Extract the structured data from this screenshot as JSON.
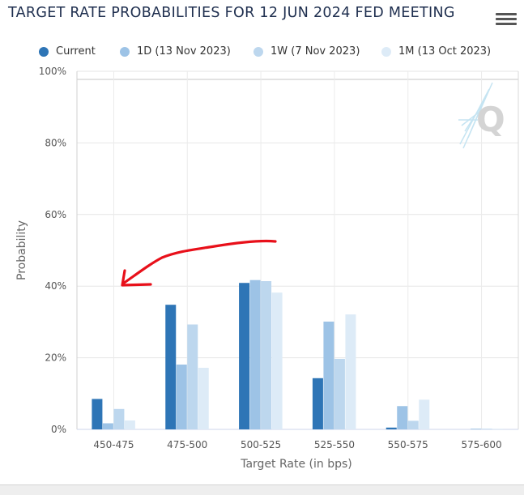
{
  "title": "TARGET RATE PROBABILITIES FOR 12 JUN 2024 FED MEETING",
  "menu_icon": "hamburger-menu-icon",
  "watermark_icon": "quikstrike-q-logo-icon",
  "annotation": {
    "type": "hand-drawn red arrow",
    "color": "#e8101a",
    "points_to": "40%"
  },
  "legend": [
    {
      "label": "Current",
      "color": "#2e75b6"
    },
    {
      "label": "1D (13 Nov 2023)",
      "color": "#9dc3e6"
    },
    {
      "label": "1W (7 Nov 2023)",
      "color": "#bdd7ee"
    },
    {
      "label": "1M (13 Oct 2023)",
      "color": "#ddebf7"
    }
  ],
  "chart_data": {
    "type": "bar",
    "title": "TARGET RATE PROBABILITIES FOR 12 JUN 2024 FED MEETING",
    "xlabel": "Target Rate (in bps)",
    "ylabel": "Probability",
    "categories": [
      "450-475",
      "475-500",
      "500-525",
      "525-550",
      "550-575",
      "575-600"
    ],
    "ylim": [
      0,
      100
    ],
    "yticks": [
      "0%",
      "20%",
      "40%",
      "60%",
      "80%",
      "100%"
    ],
    "grid": true,
    "legend_position": "top",
    "series": [
      {
        "name": "Current",
        "color": "#2e75b6",
        "values": [
          8.5,
          34.8,
          40.9,
          14.3,
          0.5,
          0.0
        ]
      },
      {
        "name": "1D (13 Nov 2023)",
        "color": "#9dc3e6",
        "values": [
          1.7,
          18.1,
          41.7,
          30.1,
          6.5,
          0.2
        ]
      },
      {
        "name": "1W (7 Nov 2023)",
        "color": "#bdd7ee",
        "values": [
          5.7,
          29.3,
          41.4,
          19.7,
          2.4,
          0.1
        ]
      },
      {
        "name": "1M (13 Oct 2023)",
        "color": "#ddebf7",
        "values": [
          2.5,
          17.2,
          38.2,
          32.1,
          8.3,
          0.1
        ]
      }
    ]
  }
}
